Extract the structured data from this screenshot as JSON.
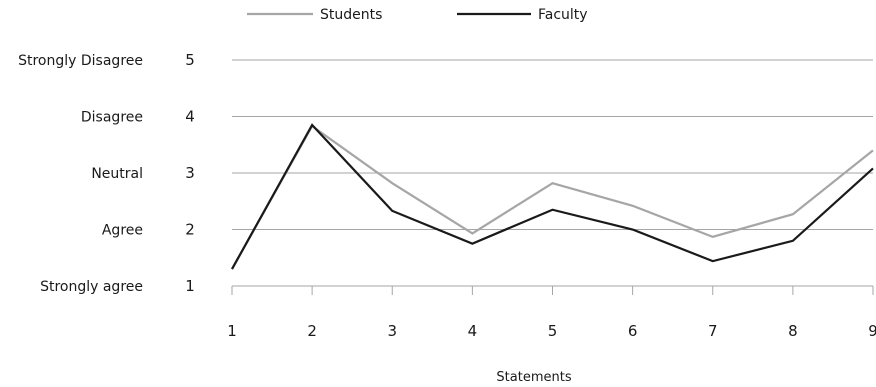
{
  "chart_data": {
    "type": "line",
    "x": [
      1,
      2,
      3,
      4,
      5,
      6,
      7,
      8,
      9
    ],
    "x_tick_labels": [
      "1",
      "2",
      "3",
      "4",
      "5",
      "6",
      "7",
      "8",
      "9"
    ],
    "xlabel": "Statements",
    "ylabel": "",
    "ylim": [
      1,
      5
    ],
    "y_ticks": [
      1,
      2,
      3,
      4,
      5
    ],
    "y_tick_labels": [
      "1",
      "2",
      "3",
      "4",
      "5"
    ],
    "y_category_labels": [
      {
        "value": 5,
        "label": "Strongly Disagree"
      },
      {
        "value": 4,
        "label": "Disagree"
      },
      {
        "value": 3,
        "label": "Neutral"
      },
      {
        "value": 2,
        "label": "Agree"
      },
      {
        "value": 1,
        "label": "Strongly agree"
      }
    ],
    "grid": true,
    "legend_position": "top",
    "series": [
      {
        "name": "Students",
        "color": "#a6a6a6",
        "values": [
          1.3,
          3.83,
          2.82,
          1.93,
          2.82,
          2.42,
          1.87,
          2.27,
          3.4
        ]
      },
      {
        "name": "Faculty",
        "color": "#1a1a1a",
        "values": [
          1.3,
          3.85,
          2.33,
          1.75,
          2.35,
          2.0,
          1.44,
          1.8,
          3.08
        ]
      }
    ]
  }
}
